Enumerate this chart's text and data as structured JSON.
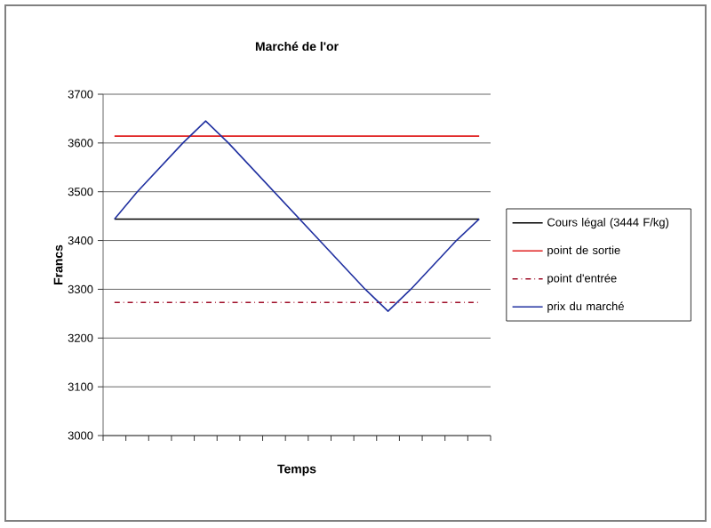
{
  "chart_data": {
    "type": "line",
    "title": "Marché de l'or",
    "xlabel": "Temps",
    "ylabel": "Francs",
    "categories": [
      null,
      null,
      null,
      null,
      null,
      null,
      null,
      null,
      null,
      null,
      null,
      null,
      null,
      null,
      null,
      null,
      null
    ],
    "series": [
      {
        "name": "Cours légal (3444 F/kg)",
        "color": "#000000",
        "line_style": "solid",
        "values": [
          3444,
          3444,
          3444,
          3444,
          3444,
          3444,
          3444,
          3444,
          3444,
          3444,
          3444,
          3444,
          3444,
          3444,
          3444,
          3444,
          3444
        ]
      },
      {
        "name": "point de sortie",
        "color": "#e02020",
        "line_style": "solid",
        "values": [
          3614,
          3614,
          3614,
          3614,
          3614,
          3614,
          3614,
          3614,
          3614,
          3614,
          3614,
          3614,
          3614,
          3614,
          3614,
          3614,
          3614
        ]
      },
      {
        "name": "point d'entrée",
        "color": "#a0102a",
        "line_style": "dashed",
        "values": [
          3273,
          3273,
          3273,
          3273,
          3273,
          3273,
          3273,
          3273,
          3273,
          3273,
          3273,
          3273,
          3273,
          3273,
          3273,
          3273,
          3273
        ]
      },
      {
        "name": "prix du marché",
        "color": "#2030a0",
        "line_style": "solid",
        "values": [
          3444,
          3500,
          3550,
          3600,
          3645,
          3600,
          3550,
          3500,
          3450,
          3400,
          3350,
          3300,
          3255,
          3300,
          3350,
          3400,
          3444
        ]
      }
    ],
    "ylim": [
      3000,
      3700
    ],
    "yticks": [
      3000,
      3100,
      3200,
      3300,
      3400,
      3500,
      3600,
      3700
    ],
    "grid": "y",
    "legend": "right",
    "tick_labels": "y"
  }
}
